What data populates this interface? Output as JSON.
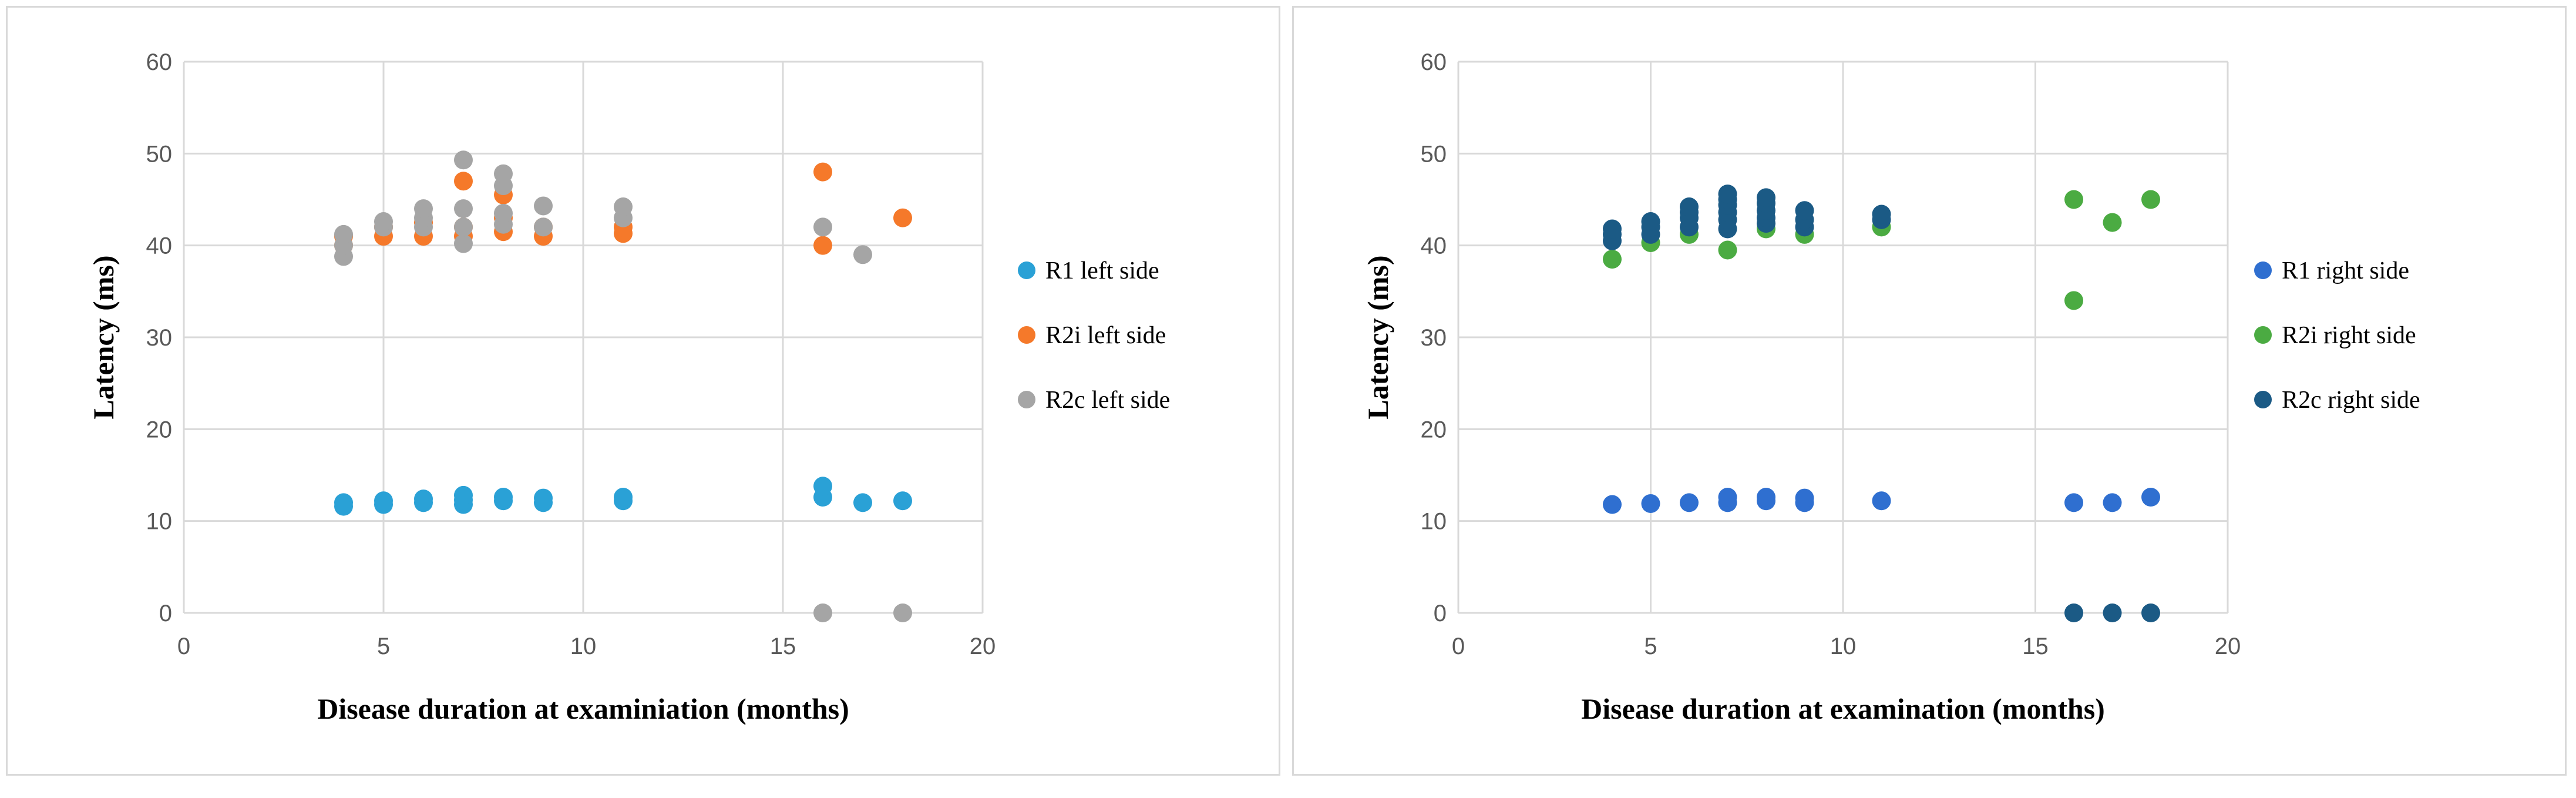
{
  "chart_data": [
    {
      "type": "scatter",
      "title": "",
      "xlabel": "Disease duration at examiniation (months)",
      "ylabel": "Latency (ms)",
      "xlim": [
        0,
        20
      ],
      "ylim": [
        0,
        60
      ],
      "xticks": [
        0,
        5,
        10,
        15,
        20
      ],
      "yticks": [
        0,
        10,
        20,
        30,
        40,
        50,
        60
      ],
      "grid": true,
      "legend_position": "right",
      "series": [
        {
          "name": "R1 left side",
          "color": "#2aa1d6",
          "x": [
            4,
            4,
            5,
            5,
            6,
            6,
            7,
            7,
            7,
            8,
            8,
            9,
            9,
            11,
            11,
            16,
            16,
            17,
            18
          ],
          "y": [
            11.6,
            12,
            11.8,
            12.2,
            12,
            12.4,
            11.8,
            12.3,
            12.8,
            12.2,
            12.6,
            12,
            12.5,
            12.2,
            12.6,
            12.6,
            13.8,
            12,
            12.2
          ]
        },
        {
          "name": "R2i left side",
          "color": "#f5792a",
          "x": [
            4,
            4,
            5,
            5,
            6,
            6,
            7,
            7,
            7,
            8,
            8,
            8,
            9,
            9,
            11,
            11,
            16,
            16,
            18
          ],
          "y": [
            40,
            41,
            41,
            42,
            41,
            42.5,
            41,
            42,
            47,
            41.5,
            43,
            45.5,
            41,
            42,
            41.3,
            42,
            48,
            40,
            43
          ]
        },
        {
          "name": "R2c left side",
          "color": "#a5a5a5",
          "x": [
            4,
            4,
            4,
            5,
            5,
            6,
            6,
            6,
            7,
            7,
            7,
            7,
            8,
            8,
            8,
            8,
            9,
            9,
            11,
            11,
            16,
            16,
            17,
            18
          ],
          "y": [
            38.8,
            40,
            41.2,
            42,
            42.6,
            42,
            43,
            44,
            40.2,
            42,
            44,
            49.3,
            42.3,
            43.5,
            46.5,
            47.8,
            42,
            44.3,
            43,
            44.2,
            42,
            0,
            39,
            0
          ]
        }
      ]
    },
    {
      "type": "scatter",
      "title": "",
      "xlabel": "Disease duration at examination (months)",
      "ylabel": "Latency (ms)",
      "xlim": [
        0,
        20
      ],
      "ylim": [
        0,
        60
      ],
      "xticks": [
        0,
        5,
        10,
        15,
        20
      ],
      "yticks": [
        0,
        10,
        20,
        30,
        40,
        50,
        60
      ],
      "grid": true,
      "legend_position": "right",
      "series": [
        {
          "name": "R1 right side",
          "color": "#2f6fd0",
          "x": [
            4,
            5,
            6,
            7,
            7,
            8,
            8,
            9,
            9,
            11,
            16,
            17,
            18
          ],
          "y": [
            11.8,
            11.9,
            12,
            12,
            12.6,
            12.2,
            12.6,
            12,
            12.5,
            12.2,
            12,
            12,
            12.6
          ]
        },
        {
          "name": "R2i right side",
          "color": "#4bab42",
          "x": [
            4,
            5,
            6,
            7,
            8,
            9,
            11,
            16,
            16,
            17,
            18
          ],
          "y": [
            38.5,
            40.3,
            41.2,
            39.5,
            41.8,
            41.2,
            42,
            45,
            34,
            42.5,
            45
          ]
        },
        {
          "name": "R2c right side",
          "color": "#1b5a85",
          "x": [
            4,
            4,
            4,
            5,
            5,
            5,
            6,
            6,
            6,
            6,
            7,
            7,
            7,
            7,
            7,
            7,
            8,
            8,
            8,
            8,
            8,
            9,
            9,
            9,
            11,
            11,
            16,
            17,
            18
          ],
          "y": [
            40.5,
            41.2,
            41.8,
            41.2,
            42,
            42.6,
            42,
            43,
            43.6,
            44.2,
            41.8,
            42.8,
            43.6,
            44.4,
            45,
            45.6,
            42.4,
            43,
            43.8,
            44.6,
            45.2,
            42,
            42.8,
            43.8,
            42.8,
            43.4,
            0,
            0,
            0
          ]
        }
      ]
    }
  ]
}
